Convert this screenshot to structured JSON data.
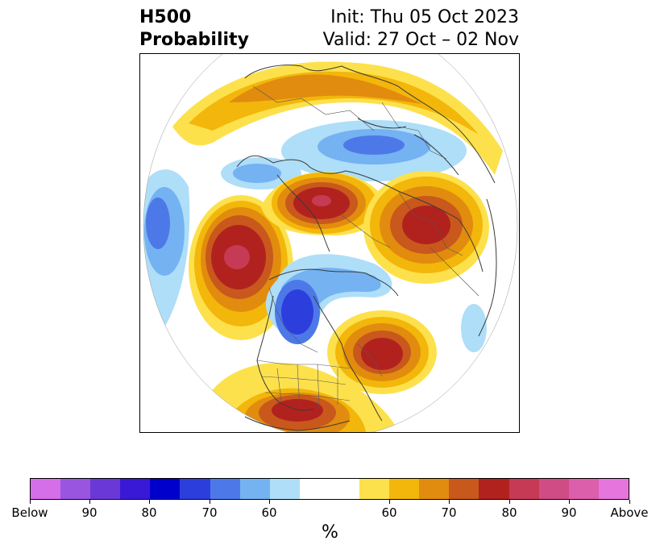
{
  "title": {
    "left_line1": "H500",
    "left_line2": "Probability",
    "right_line1": "Init: Thu 05 Oct 2023",
    "right_line2": "Valid: 27 Oct – 02 Nov"
  },
  "map": {
    "projection": "polar-stereographic-north",
    "features": [
      "coastlines",
      "country-borders",
      "us-state-borders"
    ]
  },
  "colorbar": {
    "label": "%",
    "colors": [
      "#d56ee9",
      "#9a55e0",
      "#6b38d8",
      "#3a19d6",
      "#0000cc",
      "#2c3fdd",
      "#4d79e8",
      "#75b2f2",
      "#aedef8",
      "#ffffff",
      "#fde14c",
      "#f3b60a",
      "#e18c0e",
      "#c9581d",
      "#b1221f",
      "#c73a55",
      "#cf4d84",
      "#dc5fab",
      "#e676de"
    ],
    "ticks": [
      {
        "label": "Below"
      },
      {
        "label": "90"
      },
      {
        "label": "80"
      },
      {
        "label": "70"
      },
      {
        "label": "60"
      },
      {
        "label": "60"
      },
      {
        "label": "70"
      },
      {
        "label": "80"
      },
      {
        "label": "90"
      },
      {
        "label": "Above"
      }
    ]
  }
}
